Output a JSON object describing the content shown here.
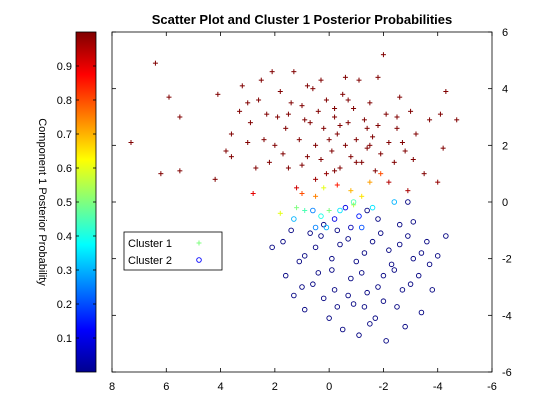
{
  "chart_data": {
    "type": "scatter",
    "title": "Scatter Plot and Cluster 1 Posterior Probabilities",
    "x_reversed": true,
    "xlim": [
      -6,
      8
    ],
    "ylim": [
      -6,
      6
    ],
    "xticks": [
      "8",
      "6",
      "4",
      "2",
      "0",
      "-2",
      "-4",
      "-6"
    ],
    "xtick_values": [
      8,
      6,
      4,
      2,
      0,
      -2,
      -4,
      -6
    ],
    "yticks": [
      "6",
      "4",
      "2",
      "0",
      "-2",
      "-4",
      "-6"
    ],
    "ytick_values": [
      6,
      4,
      2,
      0,
      -2,
      -4,
      -6
    ],
    "grid": false,
    "colorbar": {
      "label": "Component 1 Posterior Probability",
      "colormap": "jet",
      "ticks": [
        "0.1",
        "0.2",
        "0.3",
        "0.4",
        "0.5",
        "0.6",
        "0.7",
        "0.8",
        "0.9"
      ],
      "tick_values": [
        0.1,
        0.2,
        0.3,
        0.4,
        0.5,
        0.6,
        0.7,
        0.8,
        0.9
      ],
      "range": [
        0,
        1
      ]
    },
    "legend": {
      "position": "left-center",
      "entries": [
        {
          "label": "Cluster 1",
          "marker": "plus",
          "color": "#7fff7f"
        },
        {
          "label": "Cluster 2",
          "marker": "circle",
          "color": "#0000ff"
        }
      ]
    },
    "series": [
      {
        "name": "Cluster 1",
        "marker": "plus",
        "points": [
          [
            6.4,
            4.9
          ],
          [
            5.9,
            3.7
          ],
          [
            5.5,
            3.0
          ],
          [
            7.3,
            2.1
          ],
          [
            6.2,
            1.0
          ],
          [
            5.5,
            1.1
          ],
          [
            4.2,
            0.8
          ],
          [
            3.8,
            1.8
          ],
          [
            3.6,
            2.4
          ],
          [
            3.3,
            3.2
          ],
          [
            4.1,
            3.8
          ],
          [
            3.2,
            4.1
          ],
          [
            3.0,
            2.1
          ],
          [
            2.9,
            2.8
          ],
          [
            2.6,
            3.6
          ],
          [
            2.5,
            4.3
          ],
          [
            2.3,
            3.1
          ],
          [
            2.2,
            1.4
          ],
          [
            2.0,
            2.0
          ],
          [
            1.8,
            3.9
          ],
          [
            1.6,
            2.6
          ],
          [
            1.5,
            1.2
          ],
          [
            1.3,
            4.6
          ],
          [
            1.1,
            2.2
          ],
          [
            1.0,
            3.4
          ],
          [
            0.8,
            1.6
          ],
          [
            0.7,
            2.8
          ],
          [
            0.6,
            4.0
          ],
          [
            0.5,
            2.0
          ],
          [
            0.4,
            3.2
          ],
          [
            0.3,
            1.5
          ],
          [
            0.2,
            2.6
          ],
          [
            0.1,
            3.6
          ],
          [
            0.0,
            2.2
          ],
          [
            -0.1,
            1.8
          ],
          [
            -0.2,
            3.0
          ],
          [
            -0.3,
            2.4
          ],
          [
            -0.4,
            1.2
          ],
          [
            -0.5,
            3.8
          ],
          [
            -0.6,
            2.0
          ],
          [
            -0.7,
            2.8
          ],
          [
            -0.8,
            1.6
          ],
          [
            -0.9,
            3.3
          ],
          [
            -1.0,
            2.2
          ],
          [
            -1.1,
            4.3
          ],
          [
            -1.2,
            1.4
          ],
          [
            -1.3,
            2.9
          ],
          [
            -1.4,
            1.9
          ],
          [
            -1.5,
            3.5
          ],
          [
            -1.6,
            2.3
          ],
          [
            -1.7,
            1.1
          ],
          [
            -1.8,
            2.7
          ],
          [
            -1.9,
            1.7
          ],
          [
            -2.0,
            5.2
          ],
          [
            -2.1,
            3.1
          ],
          [
            -2.2,
            2.1
          ],
          [
            -2.4,
            1.4
          ],
          [
            -2.5,
            2.6
          ],
          [
            -2.6,
            3.7
          ],
          [
            -2.8,
            1.8
          ],
          [
            -3.0,
            3.2
          ],
          [
            -3.2,
            2.4
          ],
          [
            -3.5,
            1.0
          ],
          [
            -3.7,
            2.9
          ],
          [
            -4.1,
            3.1
          ],
          [
            -4.3,
            3.9
          ],
          [
            -4.7,
            2.9
          ],
          [
            -4.2,
            1.9
          ],
          [
            -2.9,
            0.4
          ],
          [
            -4.0,
            0.7
          ],
          [
            2.7,
            1.2
          ],
          [
            1.9,
            3.0
          ],
          [
            0.9,
            2.9
          ],
          [
            -0.4,
            2.7
          ],
          [
            -1.4,
            2.6
          ],
          [
            -0.2,
            1.1
          ],
          [
            0.5,
            0.8
          ],
          [
            1.2,
            0.5
          ],
          [
            -1.0,
            1.4
          ],
          [
            -2.2,
            0.7
          ],
          [
            2.8,
            0.3
          ],
          [
            3.6,
            1.6
          ],
          [
            1.4,
            3.5
          ],
          [
            -0.7,
            3.6
          ],
          [
            -1.8,
            4.4
          ],
          [
            -2.7,
            2.1
          ],
          [
            0.3,
            4.3
          ],
          [
            2.1,
            4.6
          ],
          [
            -3.1,
            1.5
          ],
          [
            1.7,
            1.7
          ],
          [
            -0.6,
            4.4
          ],
          [
            0.8,
            4.1
          ],
          [
            3.0,
            3.5
          ],
          [
            2.4,
            2.2
          ],
          [
            1.0,
            1.3
          ],
          [
            -1.5,
            2.0
          ],
          [
            -2.5,
            3.0
          ],
          [
            -0.2,
            3.3
          ],
          [
            1.5,
            3.1
          ],
          [
            0.1,
            1.0
          ]
        ],
        "posterior": [
          1,
          1,
          1,
          1,
          1,
          1,
          1,
          1,
          1,
          1,
          1,
          1,
          1,
          1,
          1,
          1,
          1,
          1,
          1,
          1,
          1,
          1,
          1,
          1,
          1,
          1,
          1,
          1,
          1,
          1,
          1,
          1,
          1,
          1,
          1,
          1,
          1,
          1,
          1,
          1,
          1,
          1,
          1,
          1,
          1,
          1,
          1,
          1,
          1,
          1,
          1,
          1,
          1,
          1,
          1,
          1,
          1,
          1,
          1,
          1,
          1,
          1,
          1,
          1,
          1,
          1,
          1,
          1,
          0.96,
          0.98,
          1,
          1,
          1,
          1,
          1,
          1,
          0.97,
          0.92,
          1,
          0.95,
          0.9,
          1,
          1,
          1,
          1,
          1,
          1,
          1,
          1,
          1,
          1,
          1,
          1,
          1,
          1,
          1,
          1,
          1,
          1,
          0.98
        ]
      },
      {
        "name": "Cluster 1",
        "marker": "plus",
        "transition": true,
        "points": [
          [
            1.0,
            0.3
          ],
          [
            0.5,
            0.2
          ],
          [
            -0.3,
            0.6
          ],
          [
            -0.8,
            0.4
          ],
          [
            -1.2,
            0.2
          ],
          [
            -1.9,
            1.0
          ],
          [
            -1.5,
            0.7
          ],
          [
            0.2,
            0.5
          ],
          [
            1.2,
            -0.2
          ],
          [
            0.9,
            -0.3
          ],
          [
            -0.9,
            -0.1
          ],
          [
            0.0,
            -0.3
          ],
          [
            1.8,
            -0.4
          ]
        ],
        "posterior": [
          0.8,
          0.75,
          0.85,
          0.7,
          0.65,
          0.8,
          0.72,
          0.6,
          0.5,
          0.45,
          0.55,
          0.5,
          0.6
        ]
      },
      {
        "name": "Cluster 2",
        "marker": "circle",
        "points": [
          [
            -2.9,
            0.0
          ],
          [
            -1.4,
            -0.3
          ],
          [
            -0.6,
            -0.2
          ],
          [
            0.2,
            -0.8
          ],
          [
            0.7,
            -1.1
          ],
          [
            -0.3,
            -1.0
          ],
          [
            1.7,
            -1.4
          ],
          [
            1.1,
            -2.1
          ],
          [
            0.5,
            -1.6
          ],
          [
            -0.1,
            -2.0
          ],
          [
            -0.7,
            -1.3
          ],
          [
            -1.3,
            -1.8
          ],
          [
            -1.9,
            -1.1
          ],
          [
            -2.3,
            -2.2
          ],
          [
            -2.6,
            -1.5
          ],
          [
            -3.1,
            -2.0
          ],
          [
            -3.6,
            -1.4
          ],
          [
            -4.0,
            -1.9
          ],
          [
            -4.3,
            -1.2
          ],
          [
            1.6,
            -2.6
          ],
          [
            1.0,
            -3.0
          ],
          [
            0.4,
            -2.5
          ],
          [
            -0.2,
            -3.1
          ],
          [
            -0.8,
            -2.7
          ],
          [
            -1.4,
            -3.2
          ],
          [
            -2.0,
            -2.6
          ],
          [
            -2.7,
            -3.1
          ],
          [
            -3.3,
            -2.6
          ],
          [
            -3.8,
            -3.1
          ],
          [
            -2.5,
            -3.7
          ],
          [
            -1.7,
            -4.1
          ],
          [
            -0.9,
            -3.6
          ],
          [
            0.0,
            -4.1
          ],
          [
            0.9,
            -3.8
          ],
          [
            -0.5,
            -4.5
          ],
          [
            -1.1,
            -4.7
          ],
          [
            -1.5,
            -4.3
          ],
          [
            -3.4,
            -3.9
          ],
          [
            -2.8,
            -4.4
          ],
          [
            -2.1,
            -4.9
          ],
          [
            2.1,
            -1.6
          ],
          [
            1.4,
            -1.0
          ],
          [
            0.9,
            -1.9
          ],
          [
            0.3,
            -1.2
          ],
          [
            -0.4,
            -1.5
          ],
          [
            -1.0,
            -2.1
          ],
          [
            -1.6,
            -1.4
          ],
          [
            -2.2,
            -1.7
          ],
          [
            -2.9,
            -1.2
          ],
          [
            -3.4,
            -1.8
          ],
          [
            0.6,
            -2.9
          ],
          [
            -0.1,
            -2.4
          ],
          [
            -0.7,
            -3.3
          ],
          [
            -1.2,
            -2.5
          ],
          [
            -1.8,
            -3.0
          ],
          [
            -2.4,
            -2.4
          ],
          [
            -3.0,
            -2.9
          ],
          [
            -3.7,
            -2.2
          ],
          [
            -0.3,
            -3.7
          ],
          [
            -1.3,
            -3.7
          ],
          [
            0.2,
            -3.4
          ],
          [
            -2.0,
            -3.5
          ],
          [
            1.3,
            -3.3
          ],
          [
            -0.8,
            -0.9
          ],
          [
            -1.8,
            -0.6
          ],
          [
            -2.6,
            -0.8
          ],
          [
            -3.1,
            -0.7
          ],
          [
            -0.2,
            -0.6
          ],
          [
            0.6,
            -0.3
          ],
          [
            -1.1,
            -0.5
          ]
        ],
        "posterior": [
          0,
          0,
          0.1,
          0,
          0,
          0,
          0,
          0,
          0,
          0,
          0,
          0,
          0,
          0,
          0,
          0,
          0,
          0,
          0,
          0,
          0,
          0,
          0,
          0,
          0,
          0,
          0,
          0,
          0,
          0,
          0,
          0,
          0,
          0,
          0,
          0,
          0,
          0,
          0,
          0,
          0,
          0,
          0,
          0,
          0,
          0,
          0,
          0,
          0,
          0,
          0,
          0,
          0,
          0,
          0,
          0,
          0,
          0,
          0,
          0,
          0,
          0,
          0,
          0.05,
          0,
          0,
          0,
          0.1,
          0.25,
          0.15
        ]
      },
      {
        "name": "Cluster 2",
        "marker": "circle",
        "transition": true,
        "points": [
          [
            0.1,
            -0.9
          ],
          [
            -0.4,
            -0.3
          ],
          [
            0.5,
            -0.9
          ],
          [
            -1.2,
            -0.9
          ],
          [
            0.3,
            -0.5
          ],
          [
            -0.9,
            0.0
          ],
          [
            1.3,
            -0.6
          ],
          [
            -2.4,
            0.0
          ],
          [
            -1.6,
            -0.2
          ]
        ],
        "posterior": [
          0.3,
          0.35,
          0.25,
          0.2,
          0.4,
          0.45,
          0.3,
          0.3,
          0.35
        ]
      }
    ]
  }
}
